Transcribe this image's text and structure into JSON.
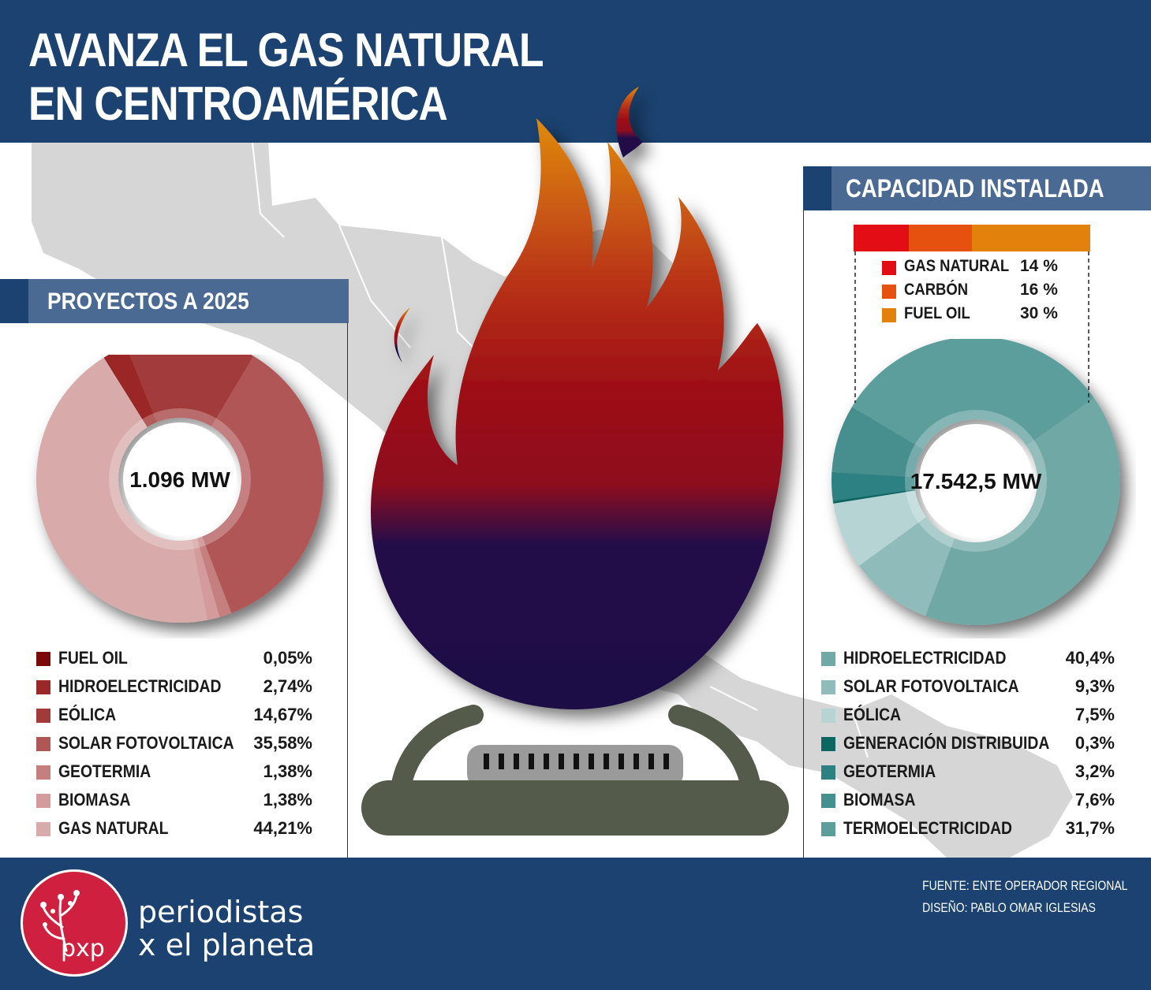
{
  "title": {
    "line1": "AVANZA EL GAS NATURAL",
    "line2": "EN CENTROAMÉRICA"
  },
  "colors": {
    "header": "#1b4270",
    "section": "#4a6a93",
    "map": "#d6d6d6",
    "brand": "#d0203f"
  },
  "left": {
    "section_title": "PROYECTOS A 2025",
    "center_label": "1.096 MW",
    "chart_data": {
      "type": "pie",
      "title": "PROYECTOS A 2025",
      "center_label": "1.096 MW",
      "categories": [
        "FUEL OIL",
        "HIDROELECTRICIDAD",
        "EÓLICA",
        "SOLAR FOTOVOLTAICA",
        "GEOTERMIA",
        "BIOMASA",
        "GAS NATURAL"
      ],
      "values": [
        0.05,
        2.74,
        14.67,
        35.58,
        1.38,
        1.38,
        44.21
      ],
      "labels": [
        "0,05%",
        "2,74%",
        "14,67%",
        "35,58%",
        "1,38%",
        "1,38%",
        "44,21%"
      ],
      "colors": [
        "#7a0a0a",
        "#9a2828",
        "#a23a3a",
        "#b05656",
        "#c57f7f",
        "#d39b9b",
        "#d9aaaa"
      ]
    }
  },
  "right": {
    "section_title": "CAPACIDAD INSTALADA",
    "center_label": "17.542,5 MW",
    "chart_data": {
      "type": "pie",
      "title": "CAPACIDAD INSTALADA",
      "center_label": "17.542,5 MW",
      "categories": [
        "HIDROELECTRICIDAD",
        "SOLAR FOTOVOLTAICA",
        "EÓLICA",
        "GENERACIÓN DISTRIBUIDA",
        "GEOTERMIA",
        "BIOMASA",
        "TERMOELECTRICIDAD"
      ],
      "values": [
        40.4,
        9.3,
        7.5,
        0.3,
        3.2,
        7.6,
        31.7
      ],
      "labels": [
        "40,4%",
        "9,3%",
        "7,5%",
        "0,3%",
        "3,2%",
        "7,6%",
        "31,7%"
      ],
      "colors": [
        "#70a8a6",
        "#8fbcbb",
        "#b6d4d4",
        "#0e6663",
        "#2d8183",
        "#468f8f",
        "#5c9e9c"
      ]
    },
    "breakdown": {
      "type": "bar",
      "title": "",
      "categories": [
        "GAS NATURAL",
        "CARBÓN",
        "FUEL OIL"
      ],
      "values": [
        14,
        16,
        30
      ],
      "labels": [
        "14 %",
        "16 %",
        "30 %"
      ],
      "colors": [
        "#e30d16",
        "#e6510f",
        "#e3810d"
      ]
    }
  },
  "footer": {
    "brand_line1": "periodistas",
    "brand_line2": "x el planeta",
    "logo_text": "pxp",
    "source": "FUENTE: ENTE OPERADOR REGIONAL",
    "design": "DISEÑO: PABLO OMAR IGLESIAS"
  }
}
